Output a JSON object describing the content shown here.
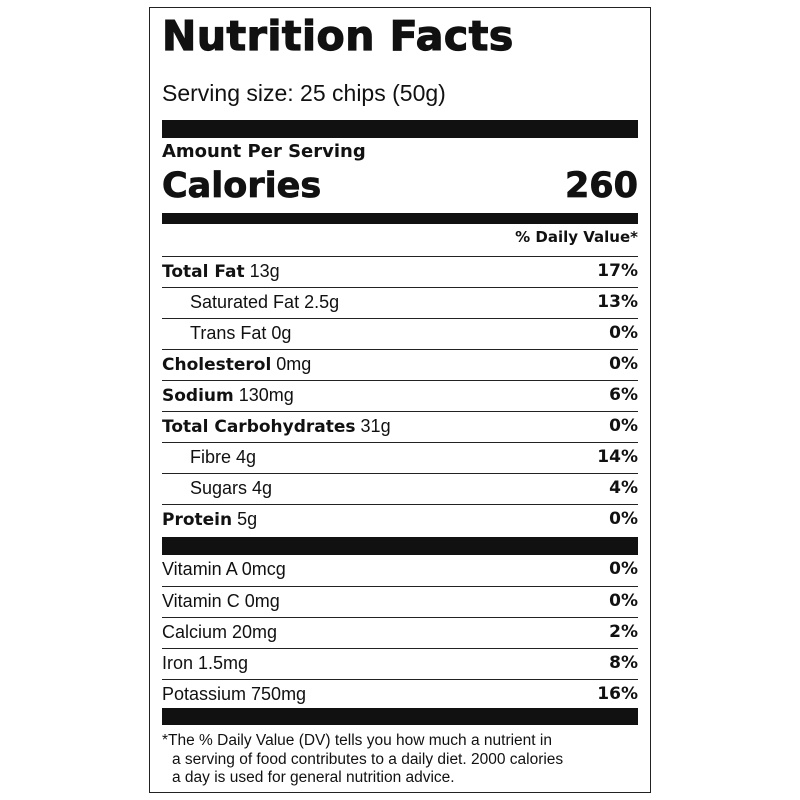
{
  "label": {
    "title": "Nutrition Facts",
    "serving_size": "Serving size: 25 chips (50g)",
    "amount_per_serving": "Amount Per Serving",
    "calories_label": "Calories",
    "calories_value": "260",
    "daily_value_header": "% Daily Value*",
    "nutrients": [
      {
        "name": "Total Fat",
        "amount": "13g",
        "dv": "17%"
      },
      {
        "name": "Saturated Fat 2.5g",
        "amount": "",
        "dv": "13%"
      },
      {
        "name": "Trans Fat 0g",
        "amount": "",
        "dv": "0%"
      },
      {
        "name": "Cholesterol",
        "amount": "0mg",
        "dv": "0%"
      },
      {
        "name": "Sodium",
        "amount": "130mg",
        "dv": "6%"
      },
      {
        "name": "Total Carbohydrates",
        "amount": "31g",
        "dv": "0%"
      },
      {
        "name": "Fibre 4g",
        "amount": "",
        "dv": "14%"
      },
      {
        "name": "Sugars 4g",
        "amount": "",
        "dv": "4%"
      },
      {
        "name": "Protein",
        "amount": "5g",
        "dv": "0%"
      }
    ],
    "vitamins": [
      {
        "name": "Vitamin A 0mcg",
        "dv": "0%"
      },
      {
        "name": "Vitamin C 0mg",
        "dv": "0%"
      },
      {
        "name": "Calcium 20mg",
        "dv": "2%"
      },
      {
        "name": "Iron 1.5mg",
        "dv": "8%"
      },
      {
        "name": "Potassium 750mg",
        "dv": "16%"
      }
    ],
    "footnote_lines": [
      "*The % Daily Value (DV) tells you how much a nutrient in",
      "a serving of food contributes to a daily diet. 2000 calories",
      "a day is used for general nutrition advice."
    ]
  }
}
